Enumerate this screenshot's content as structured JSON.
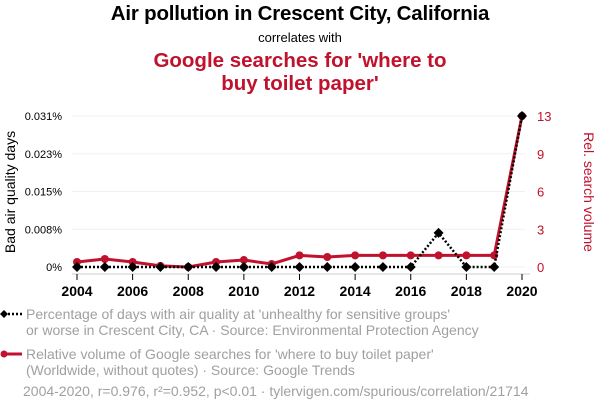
{
  "header": {
    "title": "Air pollution in Crescent City, California",
    "subtitle": "correlates with",
    "title2": "Google searches for 'where to buy toilet paper'"
  },
  "legend": {
    "series1_line1": "Percentage of days with air quality at 'unhealthy for sensitive groups'",
    "series1_line2": "or worse in Crescent City, CA · Source: Environmental Protection Agency",
    "series2_line1": "Relative volume of Google searches for 'where to buy toilet paper'",
    "series2_line2": "(Worldwide, without quotes) · Source: Google Trends"
  },
  "footer": "2004-2020, r=0.976, r²=0.952, p<0.01 · tylervigen.com/spurious/correlation/21714",
  "colors": {
    "series1": "#000000",
    "series2": "#c0122d",
    "grid": "#f0f0f0",
    "legend_text": "#a0a0a0"
  },
  "chart_data": {
    "type": "line",
    "title": "Air pollution in Crescent City, California correlates with Google searches for 'where to buy toilet paper'",
    "x": [
      2004,
      2005,
      2006,
      2007,
      2008,
      2009,
      2010,
      2011,
      2012,
      2013,
      2014,
      2015,
      2016,
      2017,
      2018,
      2019,
      2020
    ],
    "xticks": [
      "2004",
      "2006",
      "2008",
      "2010",
      "2012",
      "2014",
      "2016",
      "2018",
      "2020"
    ],
    "xtick_values": [
      2004,
      2006,
      2008,
      2010,
      2012,
      2014,
      2016,
      2018,
      2020
    ],
    "xlim": [
      2004,
      2020
    ],
    "ylabel_left": "Bad air quality days",
    "ylabel_right": "Rel. search volume",
    "ylim_left": [
      0,
      0.031
    ],
    "ylim_right": [
      0,
      13
    ],
    "yticks_left": [
      "0%",
      "0.008%",
      "0.015%",
      "0.023%",
      "0.031%"
    ],
    "ytick_values_left": [
      0,
      0.00775,
      0.0155,
      0.02325,
      0.031
    ],
    "yticks_right": [
      "0",
      "3",
      "6",
      "9",
      "13"
    ],
    "ytick_values_right": [
      0,
      3.25,
      6.5,
      9.75,
      13
    ],
    "grid": true,
    "series": [
      {
        "name": "Percentage of days with air quality at 'unhealthy for sensitive groups' or worse in Crescent City, CA",
        "axis": "left",
        "unit": "%",
        "style": "dotted",
        "marker": "diamond",
        "values": [
          0,
          0,
          0,
          0,
          0,
          0,
          0,
          0,
          0,
          0,
          0,
          0,
          0,
          0.007,
          0,
          0,
          0.031
        ]
      },
      {
        "name": "Relative volume of Google searches for 'where to buy toilet paper'",
        "axis": "right",
        "style": "solid",
        "marker": "circle",
        "values": [
          0.43,
          0.69,
          0.43,
          0.1,
          0,
          0.43,
          0.6,
          0.26,
          1,
          0.86,
          1,
          1,
          1,
          1,
          1,
          1,
          13
        ]
      }
    ]
  }
}
